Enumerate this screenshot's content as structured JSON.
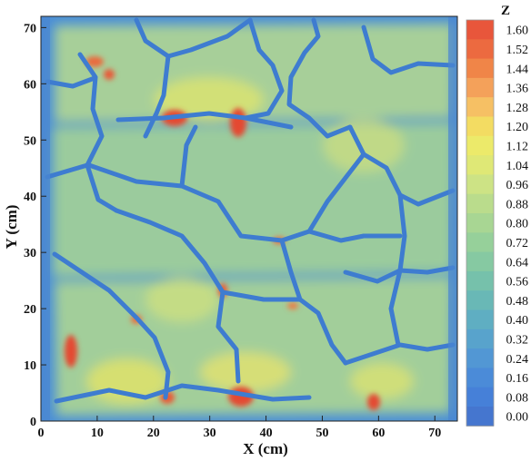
{
  "chart_data": {
    "type": "heatmap",
    "title": "",
    "xlabel": "X (cm)",
    "ylabel": "Y (cm)",
    "xlim": [
      0,
      74
    ],
    "ylim": [
      0,
      72
    ],
    "xticks": [
      "0",
      "10",
      "20",
      "30",
      "40",
      "50",
      "60",
      "70"
    ],
    "yticks": [
      "0",
      "10",
      "20",
      "30",
      "40",
      "50",
      "60",
      "70"
    ],
    "colorbar": {
      "title": "Z",
      "labels": [
        "1.60",
        "1.52",
        "1.44",
        "1.36",
        "1.28",
        "1.20",
        "1.12",
        "1.04",
        "0.96",
        "0.88",
        "0.80",
        "0.72",
        "0.64",
        "0.56",
        "0.48",
        "0.40",
        "0.32",
        "0.24",
        "0.16",
        "0.08",
        "0.00"
      ],
      "colors": [
        "#e8563b",
        "#ec6a40",
        "#f08548",
        "#f4a15a",
        "#f6c064",
        "#f3dc62",
        "#ecea6a",
        "#dfe876",
        "#cde385",
        "#badc8c",
        "#a8d693",
        "#96d09a",
        "#86c9a2",
        "#76c1ab",
        "#69b8b6",
        "#5faec2",
        "#58a3cc",
        "#5297d4",
        "#4b8bd8",
        "#4680d8",
        "#4576cf"
      ]
    },
    "grid": false
  }
}
